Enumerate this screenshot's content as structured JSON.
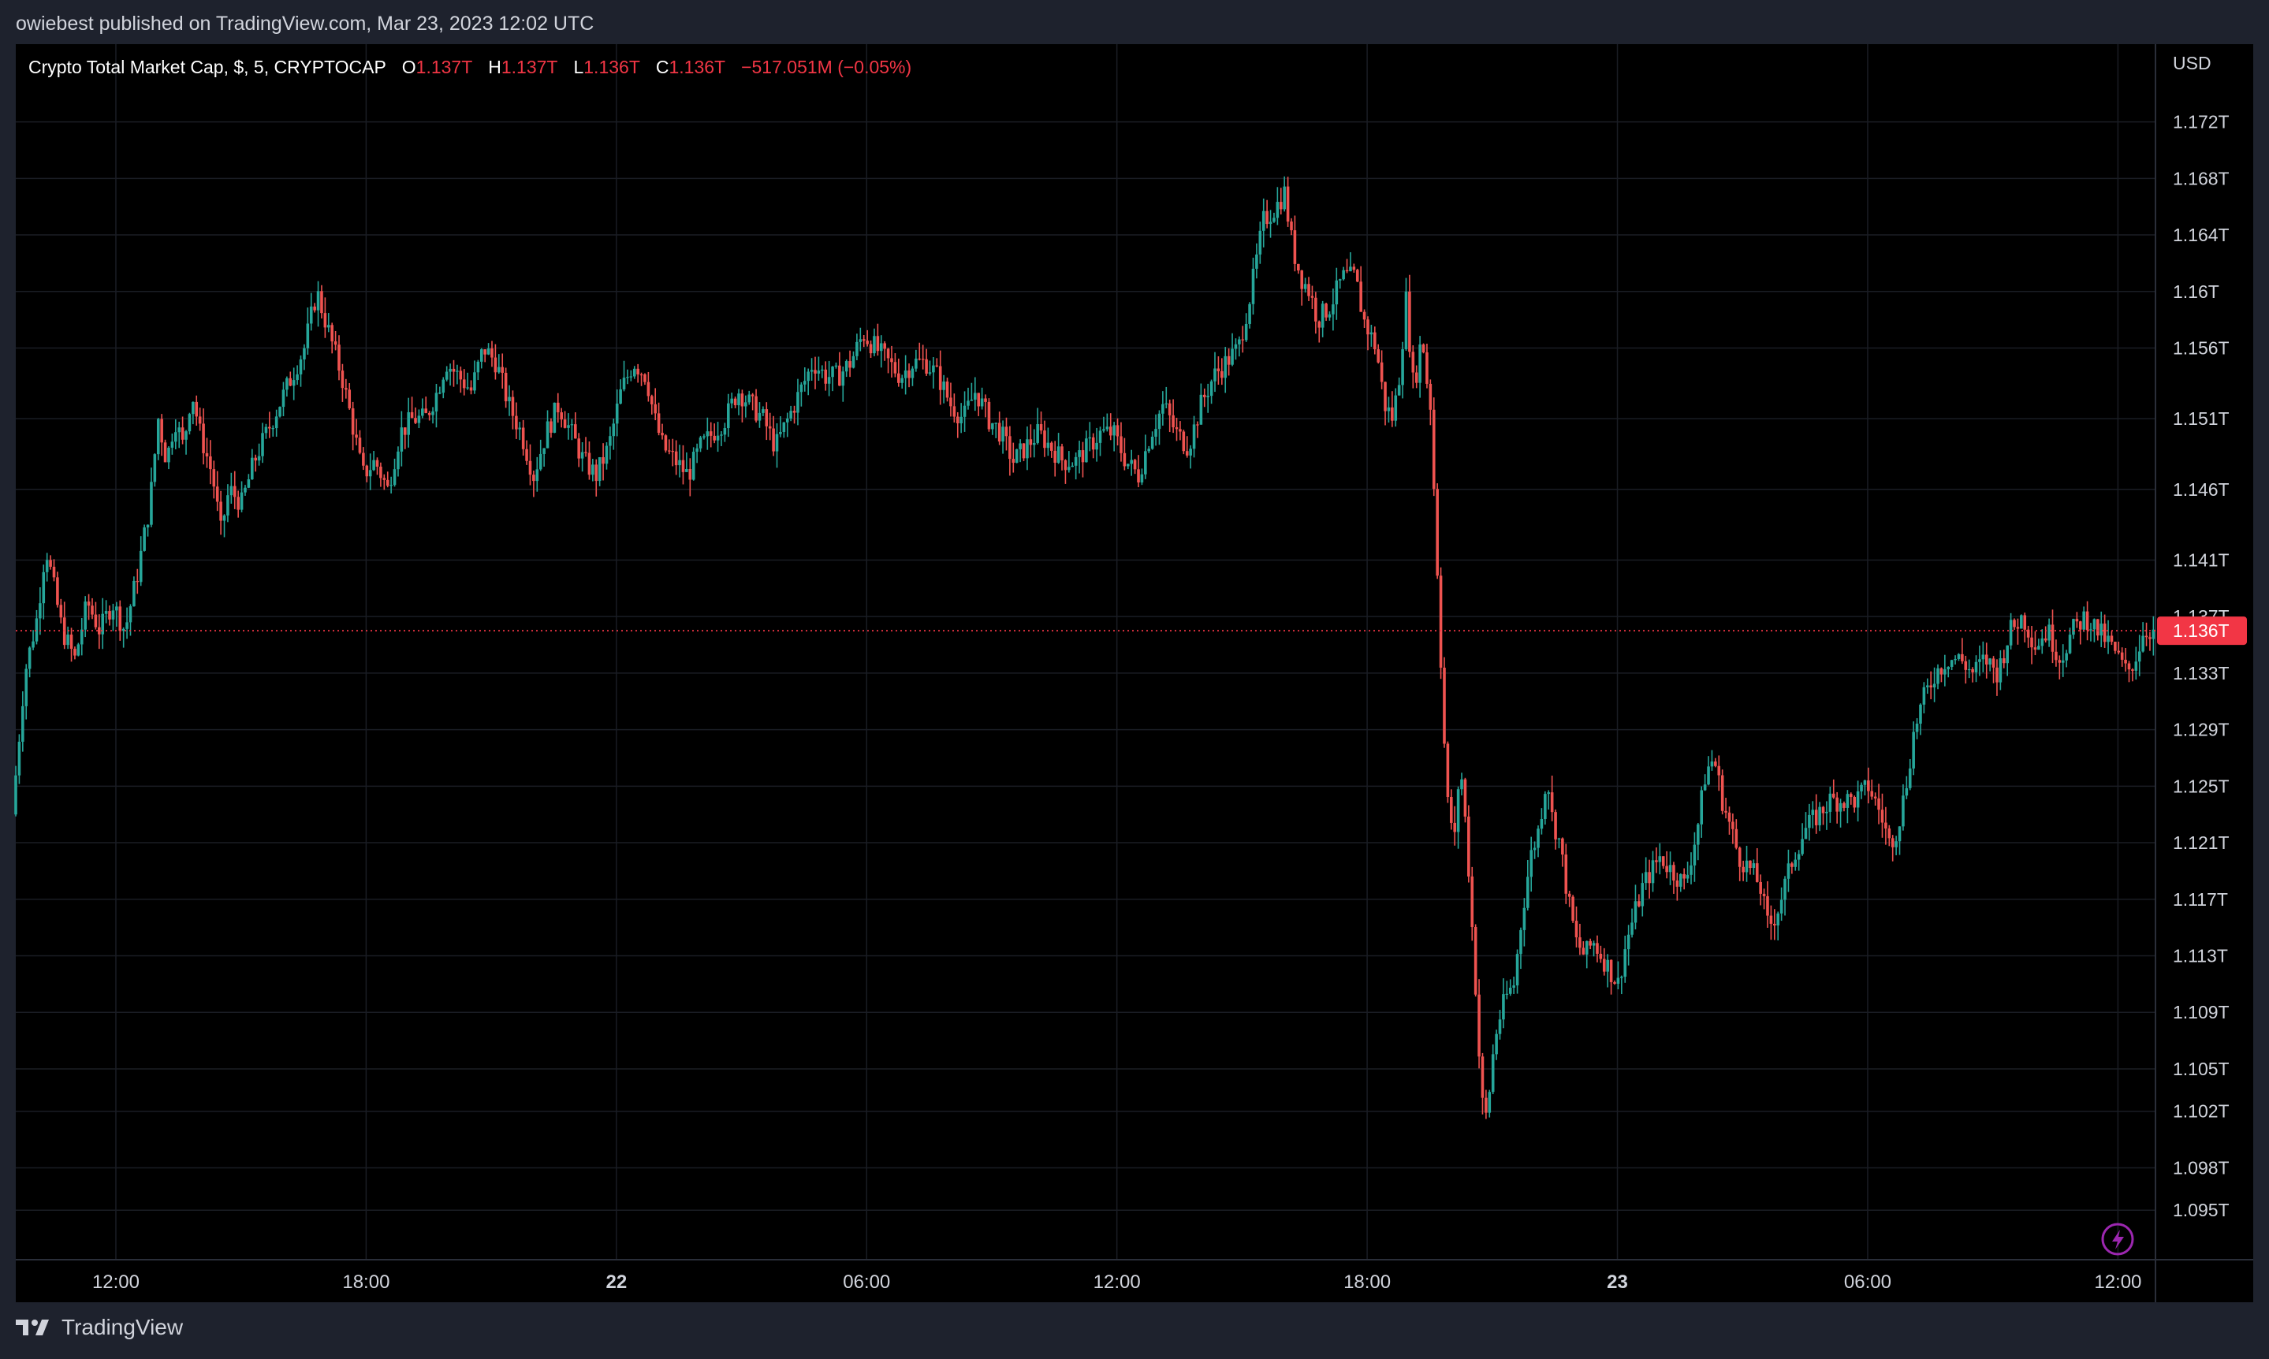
{
  "header": {
    "published": "owiebest published on TradingView.com, Mar 23, 2023 12:02 UTC"
  },
  "legend": {
    "symbol": "Crypto Total Market Cap, $, 5, CRYPTOCAP",
    "open_label": "O",
    "open": "1.137T",
    "high_label": "H",
    "high": "1.137T",
    "low_label": "L",
    "low": "1.136T",
    "close_label": "C",
    "close": "1.136T",
    "change": "−517.051M (−0.05%)"
  },
  "footer": {
    "brand": "TradingView"
  },
  "colors": {
    "up": "#26a69a",
    "down": "#ef5350",
    "grid": "#1a1d24",
    "axis_text": "#d1d4dc",
    "price_line": "#f23645",
    "background": "#000000"
  },
  "chart_data": {
    "type": "candlestick",
    "currency": "USD",
    "interval_minutes": 5,
    "y_ticks": [
      "1.172T",
      "1.168T",
      "1.164T",
      "1.16T",
      "1.156T",
      "1.151T",
      "1.146T",
      "1.141T",
      "1.137T",
      "1.133T",
      "1.129T",
      "1.125T",
      "1.121T",
      "1.117T",
      "1.113T",
      "1.109T",
      "1.105T",
      "1.102T",
      "1.098T",
      "1.095T"
    ],
    "y_tick_values": [
      1.172,
      1.168,
      1.164,
      1.16,
      1.156,
      1.151,
      1.146,
      1.141,
      1.137,
      1.133,
      1.129,
      1.125,
      1.121,
      1.117,
      1.113,
      1.109,
      1.105,
      1.102,
      1.098,
      1.095
    ],
    "y_unit": "T",
    "ylim": [
      1.0915,
      1.1775
    ],
    "x_ticks": [
      {
        "label": "12:00",
        "t": 0,
        "bold": false
      },
      {
        "label": "18:00",
        "t": 6,
        "bold": false
      },
      {
        "label": "22",
        "t": 12,
        "bold": true
      },
      {
        "label": "06:00",
        "t": 18,
        "bold": false
      },
      {
        "label": "12:00",
        "t": 24,
        "bold": false
      },
      {
        "label": "18:00",
        "t": 30,
        "bold": false
      },
      {
        "label": "23",
        "t": 36,
        "bold": true
      },
      {
        "label": "06:00",
        "t": 42,
        "bold": false
      },
      {
        "label": "12:00",
        "t": 48,
        "bold": false
      }
    ],
    "xlim": [
      -2.4,
      48.9
    ],
    "current_price": 1.136,
    "current_price_label": "1.136T",
    "grid": true,
    "path": [
      [
        -2.4,
        1.123
      ],
      [
        -2.1,
        1.133
      ],
      [
        -1.8,
        1.137
      ],
      [
        -1.6,
        1.142
      ],
      [
        -1.4,
        1.139
      ],
      [
        -1.2,
        1.136
      ],
      [
        -0.9,
        1.134
      ],
      [
        -0.6,
        1.138
      ],
      [
        -0.3,
        1.136
      ],
      [
        0.0,
        1.138
      ],
      [
        0.3,
        1.136
      ],
      [
        0.6,
        1.14
      ],
      [
        0.9,
        1.145
      ],
      [
        1.1,
        1.151
      ],
      [
        1.3,
        1.148
      ],
      [
        1.5,
        1.151
      ],
      [
        1.7,
        1.149
      ],
      [
        1.9,
        1.153
      ],
      [
        2.1,
        1.15
      ],
      [
        2.4,
        1.147
      ],
      [
        2.6,
        1.143
      ],
      [
        2.8,
        1.146
      ],
      [
        3.1,
        1.145
      ],
      [
        3.4,
        1.148
      ],
      [
        3.7,
        1.15
      ],
      [
        4.0,
        1.152
      ],
      [
        4.3,
        1.154
      ],
      [
        4.6,
        1.156
      ],
      [
        4.9,
        1.16
      ],
      [
        5.2,
        1.157
      ],
      [
        5.5,
        1.154
      ],
      [
        5.8,
        1.15
      ],
      [
        6.0,
        1.147
      ],
      [
        6.3,
        1.148
      ],
      [
        6.6,
        1.146
      ],
      [
        6.9,
        1.15
      ],
      [
        7.2,
        1.151
      ],
      [
        7.5,
        1.151
      ],
      [
        7.8,
        1.153
      ],
      [
        8.0,
        1.155
      ],
      [
        8.3,
        1.154
      ],
      [
        8.6,
        1.153
      ],
      [
        8.9,
        1.156
      ],
      [
        9.2,
        1.155
      ],
      [
        9.5,
        1.152
      ],
      [
        9.8,
        1.15
      ],
      [
        10.1,
        1.147
      ],
      [
        10.4,
        1.15
      ],
      [
        10.7,
        1.152
      ],
      [
        11.0,
        1.15
      ],
      [
        11.3,
        1.148
      ],
      [
        11.6,
        1.147
      ],
      [
        11.9,
        1.149
      ],
      [
        12.2,
        1.153
      ],
      [
        12.5,
        1.155
      ],
      [
        12.8,
        1.154
      ],
      [
        13.0,
        1.151
      ],
      [
        13.2,
        1.149
      ],
      [
        13.5,
        1.148
      ],
      [
        13.8,
        1.147
      ],
      [
        14.1,
        1.149
      ],
      [
        14.4,
        1.15
      ],
      [
        14.7,
        1.151
      ],
      [
        15.0,
        1.153
      ],
      [
        15.3,
        1.152
      ],
      [
        15.6,
        1.151
      ],
      [
        15.9,
        1.149
      ],
      [
        16.2,
        1.151
      ],
      [
        16.5,
        1.153
      ],
      [
        16.8,
        1.155
      ],
      [
        17.1,
        1.154
      ],
      [
        17.4,
        1.154
      ],
      [
        17.7,
        1.155
      ],
      [
        18.0,
        1.157
      ],
      [
        18.3,
        1.156
      ],
      [
        18.6,
        1.155
      ],
      [
        18.9,
        1.154
      ],
      [
        19.2,
        1.155
      ],
      [
        19.5,
        1.155
      ],
      [
        19.8,
        1.154
      ],
      [
        20.1,
        1.152
      ],
      [
        20.4,
        1.151
      ],
      [
        20.7,
        1.153
      ],
      [
        21.0,
        1.151
      ],
      [
        21.3,
        1.15
      ],
      [
        21.6,
        1.148
      ],
      [
        21.9,
        1.149
      ],
      [
        22.2,
        1.15
      ],
      [
        22.5,
        1.149
      ],
      [
        22.8,
        1.148
      ],
      [
        23.1,
        1.148
      ],
      [
        23.4,
        1.149
      ],
      [
        23.7,
        1.15
      ],
      [
        24.0,
        1.15
      ],
      [
        24.3,
        1.148
      ],
      [
        24.6,
        1.147
      ],
      [
        24.9,
        1.15
      ],
      [
        25.2,
        1.152
      ],
      [
        25.5,
        1.15
      ],
      [
        25.8,
        1.149
      ],
      [
        26.1,
        1.152
      ],
      [
        26.4,
        1.154
      ],
      [
        26.7,
        1.155
      ],
      [
        27.0,
        1.156
      ],
      [
        27.3,
        1.16
      ],
      [
        27.6,
        1.165
      ],
      [
        27.9,
        1.166
      ],
      [
        28.1,
        1.167
      ],
      [
        28.3,
        1.163
      ],
      [
        28.5,
        1.161
      ],
      [
        28.7,
        1.16
      ],
      [
        28.9,
        1.158
      ],
      [
        29.2,
        1.159
      ],
      [
        29.5,
        1.161
      ],
      [
        29.8,
        1.161
      ],
      [
        30.0,
        1.158
      ],
      [
        30.3,
        1.156
      ],
      [
        30.5,
        1.152
      ],
      [
        30.7,
        1.151
      ],
      [
        30.9,
        1.155
      ],
      [
        31.0,
        1.16
      ],
      [
        31.2,
        1.153
      ],
      [
        31.4,
        1.157
      ],
      [
        31.5,
        1.154
      ],
      [
        31.6,
        1.152
      ],
      [
        31.7,
        1.145
      ],
      [
        31.8,
        1.138
      ],
      [
        31.9,
        1.13
      ],
      [
        32.0,
        1.124
      ],
      [
        32.2,
        1.121
      ],
      [
        32.3,
        1.127
      ],
      [
        32.4,
        1.124
      ],
      [
        32.5,
        1.12
      ],
      [
        32.6,
        1.115
      ],
      [
        32.7,
        1.11
      ],
      [
        32.8,
        1.104
      ],
      [
        32.9,
        1.101
      ],
      [
        33.0,
        1.103
      ],
      [
        33.1,
        1.106
      ],
      [
        33.2,
        1.108
      ],
      [
        33.4,
        1.11
      ],
      [
        33.6,
        1.111
      ],
      [
        33.8,
        1.116
      ],
      [
        34.0,
        1.12
      ],
      [
        34.2,
        1.122
      ],
      [
        34.4,
        1.126
      ],
      [
        34.5,
        1.123
      ],
      [
        34.7,
        1.121
      ],
      [
        34.9,
        1.117
      ],
      [
        35.1,
        1.114
      ],
      [
        35.3,
        1.113
      ],
      [
        35.5,
        1.114
      ],
      [
        35.7,
        1.113
      ],
      [
        35.9,
        1.112
      ],
      [
        36.1,
        1.111
      ],
      [
        36.3,
        1.114
      ],
      [
        36.5,
        1.116
      ],
      [
        36.7,
        1.118
      ],
      [
        36.9,
        1.119
      ],
      [
        37.1,
        1.12
      ],
      [
        37.4,
        1.119
      ],
      [
        37.7,
        1.118
      ],
      [
        38.0,
        1.122
      ],
      [
        38.2,
        1.126
      ],
      [
        38.4,
        1.127
      ],
      [
        38.6,
        1.124
      ],
      [
        38.8,
        1.122
      ],
      [
        39.0,
        1.12
      ],
      [
        39.3,
        1.119
      ],
      [
        39.5,
        1.118
      ],
      [
        39.7,
        1.115
      ],
      [
        39.9,
        1.116
      ],
      [
        40.1,
        1.118
      ],
      [
        40.3,
        1.12
      ],
      [
        40.6,
        1.122
      ],
      [
        40.9,
        1.123
      ],
      [
        41.2,
        1.124
      ],
      [
        41.5,
        1.124
      ],
      [
        41.8,
        1.124
      ],
      [
        42.1,
        1.125
      ],
      [
        42.4,
        1.123
      ],
      [
        42.6,
        1.121
      ],
      [
        42.8,
        1.122
      ],
      [
        43.0,
        1.125
      ],
      [
        43.2,
        1.129
      ],
      [
        43.4,
        1.131
      ],
      [
        43.7,
        1.133
      ],
      [
        44.0,
        1.134
      ],
      [
        44.3,
        1.134
      ],
      [
        44.6,
        1.133
      ],
      [
        44.9,
        1.134
      ],
      [
        45.2,
        1.133
      ],
      [
        45.5,
        1.136
      ],
      [
        45.8,
        1.137
      ],
      [
        46.1,
        1.135
      ],
      [
        46.4,
        1.136
      ],
      [
        46.7,
        1.134
      ],
      [
        47.0,
        1.136
      ],
      [
        47.3,
        1.137
      ],
      [
        47.6,
        1.136
      ],
      [
        47.9,
        1.135
      ],
      [
        48.1,
        1.134
      ],
      [
        48.3,
        1.133
      ],
      [
        48.5,
        1.134
      ],
      [
        48.7,
        1.136
      ],
      [
        48.9,
        1.136
      ]
    ]
  }
}
